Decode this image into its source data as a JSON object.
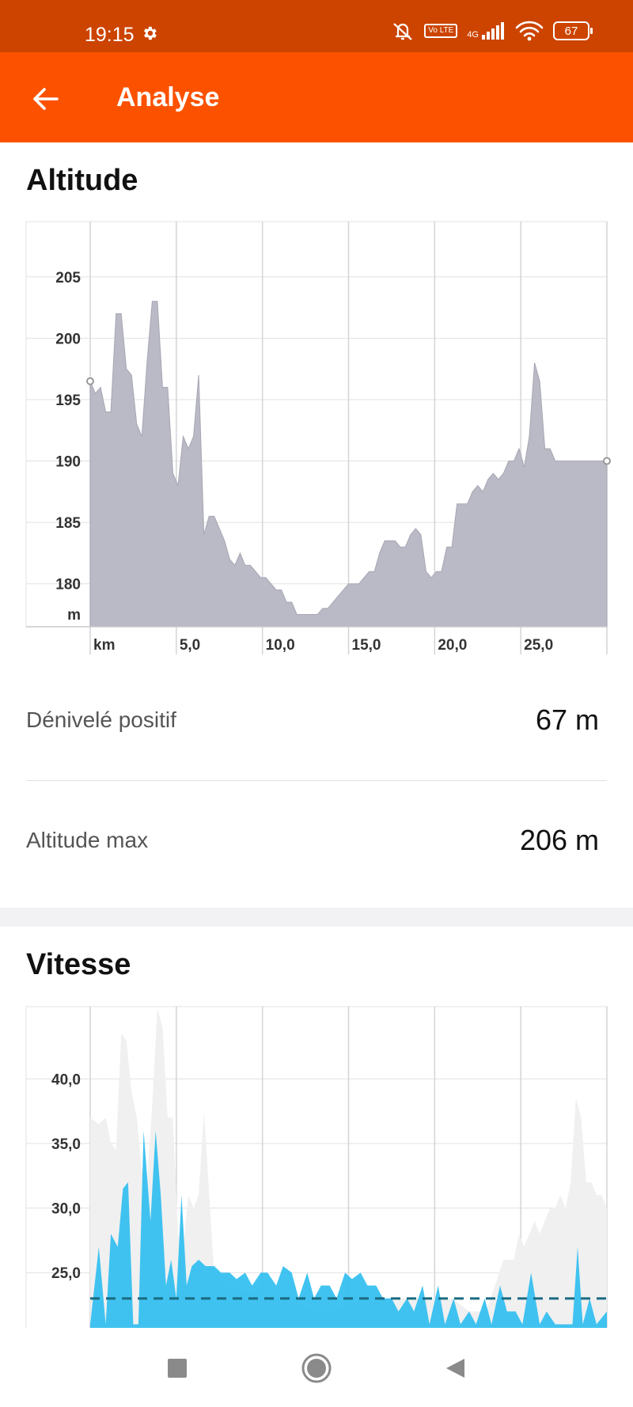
{
  "status_bar": {
    "time": "19:15",
    "battery": "67",
    "network": "4G",
    "volte": "Vo LTE"
  },
  "app_bar": {
    "title": "Analyse"
  },
  "altitude": {
    "section_title": "Altitude",
    "chart_data": {
      "type": "area",
      "x_ticks": [
        "km",
        "5,0",
        "10,0",
        "15,0",
        "20,0",
        "25,0"
      ],
      "y_ticks": [
        "205",
        "200",
        "195",
        "190",
        "185",
        "180",
        "m"
      ],
      "ylim": [
        176.5,
        209.5
      ],
      "xlim": [
        0,
        30
      ],
      "x": [
        0,
        0.3,
        0.6,
        0.9,
        1.2,
        1.5,
        1.8,
        2.1,
        2.4,
        2.7,
        3.0,
        3.3,
        3.6,
        3.9,
        4.2,
        4.5,
        4.8,
        5.1,
        5.4,
        5.7,
        6.0,
        6.3,
        6.6,
        6.9,
        7.2,
        7.5,
        7.8,
        8.1,
        8.4,
        8.7,
        9.0,
        9.3,
        9.6,
        9.9,
        10.2,
        10.5,
        10.8,
        11.1,
        11.4,
        11.7,
        12.0,
        12.3,
        12.6,
        12.9,
        13.2,
        13.5,
        13.8,
        14.1,
        14.4,
        14.7,
        15.0,
        15.3,
        15.6,
        15.9,
        16.2,
        16.5,
        16.8,
        17.1,
        17.4,
        17.7,
        18.0,
        18.3,
        18.6,
        18.9,
        19.2,
        19.5,
        19.8,
        20.1,
        20.4,
        20.7,
        21.0,
        21.3,
        21.6,
        21.9,
        22.2,
        22.5,
        22.8,
        23.1,
        23.4,
        23.7,
        24.0,
        24.3,
        24.6,
        24.9,
        25.2,
        25.5,
        25.8,
        26.1,
        26.4,
        26.7,
        27.0,
        27.3,
        27.6,
        27.9,
        28.2,
        28.5,
        28.8,
        29.1,
        29.4,
        29.7,
        30.0
      ],
      "values": [
        196.5,
        195.5,
        196.0,
        194.0,
        194.0,
        202.0,
        202.0,
        197.5,
        197.0,
        193.0,
        192.0,
        198.0,
        203.0,
        203.0,
        196.0,
        196.0,
        189.0,
        188.0,
        192.0,
        191.0,
        192.0,
        197.0,
        184.0,
        185.5,
        185.5,
        184.5,
        183.5,
        182.0,
        181.5,
        182.5,
        181.5,
        181.5,
        181.0,
        180.5,
        180.5,
        180.0,
        179.5,
        179.5,
        178.5,
        178.5,
        177.5,
        177.5,
        177.5,
        177.5,
        177.5,
        178.0,
        178.0,
        178.5,
        179.0,
        179.5,
        180.0,
        180.0,
        180.0,
        180.5,
        181.0,
        181.0,
        182.5,
        183.5,
        183.5,
        183.5,
        183.0,
        183.0,
        184.0,
        184.5,
        184.0,
        181.0,
        180.5,
        181.0,
        181.0,
        183.0,
        183.0,
        186.5,
        186.5,
        186.5,
        187.5,
        188.0,
        187.5,
        188.5,
        189.0,
        188.5,
        189.0,
        190.0,
        190.0,
        191.0,
        189.5,
        192.0,
        198.0,
        196.5,
        191.0,
        191.0,
        190.0,
        190.0,
        190.0,
        190.0,
        190.0,
        190.0,
        190.0,
        190.0,
        190.0,
        190.0,
        190.0
      ]
    }
  },
  "stats": [
    {
      "label": "Dénivelé positif",
      "value": "67 m"
    },
    {
      "label": "Altitude max",
      "value": "206 m"
    }
  ],
  "vitesse": {
    "section_title": "Vitesse",
    "chart_data": {
      "type": "area",
      "y_ticks": [
        "40,0",
        "35,0",
        "30,0",
        "25,0"
      ],
      "ylim": [
        20.6,
        45.6
      ],
      "xlim": [
        0,
        30
      ],
      "average": 23.0,
      "series": [
        {
          "name": "",
          "color": "#2bbcf0",
          "x": [
            0,
            0.5,
            0.9,
            1.2,
            1.6,
            1.9,
            2.2,
            2.5,
            2.8,
            3.1,
            3.5,
            3.8,
            4.1,
            4.4,
            4.7,
            5.0,
            5.3,
            5.6,
            5.9,
            6.3,
            6.7,
            7.2,
            7.6,
            8.1,
            8.5,
            9.0,
            9.4,
            9.9,
            10.3,
            10.8,
            11.2,
            11.7,
            12.1,
            12.6,
            13.0,
            13.4,
            13.9,
            14.3,
            14.8,
            15.2,
            15.7,
            16.1,
            16.6,
            17.0,
            17.5,
            17.9,
            18.4,
            18.8,
            19.3,
            19.7,
            20.2,
            20.6,
            21.1,
            21.5,
            22.0,
            22.4,
            22.9,
            23.3,
            23.8,
            24.2,
            24.7,
            25.1,
            25.6,
            26.1,
            26.5,
            27.0,
            27.5,
            28.0,
            28.3,
            28.6,
            29.0,
            29.4,
            30.0
          ],
          "values": [
            21,
            27,
            21,
            28,
            27,
            31.5,
            32,
            21,
            21,
            36,
            29,
            36,
            31,
            24,
            26,
            23,
            31,
            24,
            25.5,
            26,
            25.5,
            25.5,
            25,
            25,
            24.5,
            25,
            24,
            25,
            25,
            24,
            25.5,
            25,
            23,
            25,
            23,
            24,
            24,
            23,
            25,
            24.5,
            25,
            24,
            24,
            23,
            23,
            22,
            23,
            22,
            24,
            21,
            24,
            21,
            23,
            21,
            22,
            21,
            23,
            21,
            24,
            22,
            22,
            21,
            25,
            21,
            22,
            21,
            21,
            21,
            27,
            21,
            23,
            21,
            22
          ]
        },
        {
          "name": "",
          "color": "#f0f0f0",
          "x": [
            0,
            0.5,
            0.9,
            1.2,
            1.5,
            1.8,
            2.1,
            2.4,
            2.7,
            3.0,
            3.3,
            3.6,
            3.9,
            4.2,
            4.5,
            4.8,
            5.1,
            5.4,
            5.7,
            6.0,
            6.3,
            6.6,
            7.2,
            8.0,
            9.0,
            10.0,
            11.0,
            12.0,
            13.0,
            14.0,
            15.0,
            16.0,
            17.0,
            18.0,
            19.0,
            20.0,
            21.0,
            22.0,
            23.0,
            23.5,
            24.0,
            24.3,
            24.6,
            24.9,
            25.2,
            25.5,
            25.8,
            26.1,
            26.4,
            26.7,
            27.0,
            27.3,
            27.6,
            27.9,
            28.2,
            28.5,
            28.8,
            29.1,
            29.4,
            29.7,
            30.0
          ],
          "values": [
            37,
            36.5,
            37,
            35,
            34.5,
            43.5,
            43,
            39,
            37,
            33,
            32,
            38,
            45.5,
            44,
            37,
            37,
            28,
            27,
            31,
            30,
            31,
            37.5,
            25,
            24,
            23.5,
            23.5,
            23,
            22.5,
            22,
            22,
            22.5,
            22.5,
            23,
            23,
            23,
            23,
            23,
            22,
            22,
            24,
            26,
            26,
            26,
            28,
            27,
            28,
            29,
            28,
            29,
            30,
            30,
            31,
            30,
            32,
            38.5,
            37,
            32,
            32,
            31,
            31,
            30
          ]
        }
      ]
    }
  }
}
